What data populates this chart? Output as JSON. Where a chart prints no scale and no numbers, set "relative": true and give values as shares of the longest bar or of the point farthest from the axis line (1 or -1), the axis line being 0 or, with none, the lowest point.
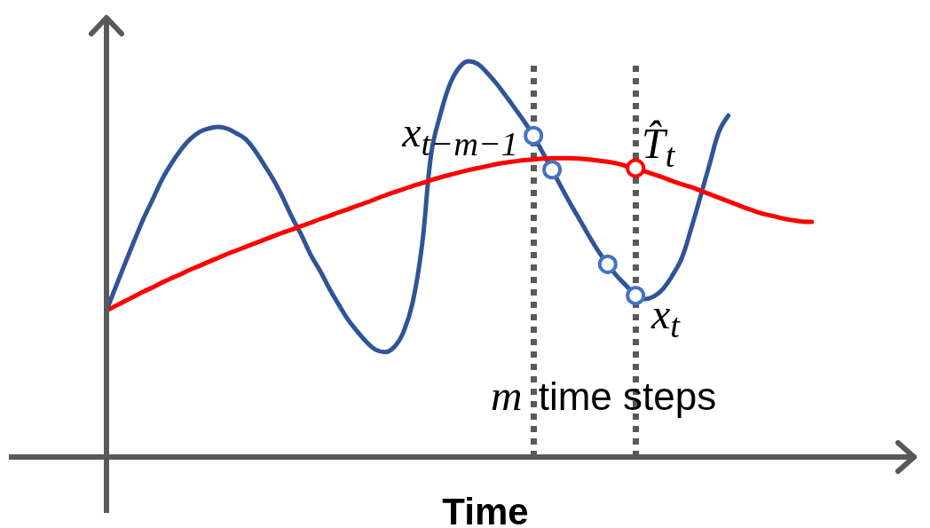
{
  "chart_data": {
    "type": "line",
    "relative": true,
    "xlabel": "Time",
    "categories": [
      null,
      null,
      null,
      null,
      null,
      null,
      null,
      null,
      null,
      null,
      null,
      null,
      null,
      null,
      null,
      null,
      null,
      null,
      null,
      null,
      null,
      null,
      null,
      null,
      null,
      null,
      null,
      null,
      null,
      null,
      null,
      null,
      null,
      null,
      null,
      null,
      null,
      null,
      null,
      null,
      null,
      null,
      null,
      null,
      null,
      null,
      null,
      null,
      null,
      null,
      null,
      null,
      null,
      null,
      null,
      null,
      null,
      null,
      null,
      null,
      null,
      null,
      null,
      null,
      null,
      null,
      null,
      null,
      null,
      null,
      null,
      null,
      null,
      null,
      null,
      null,
      null,
      null,
      null,
      null,
      null,
      null,
      null,
      null,
      null,
      null,
      null,
      null
    ],
    "series": [
      {
        "color": "#2f5597",
        "marker": "none",
        "values": [
          0.37,
          0.43,
          0.489,
          0.547,
          0.603,
          0.652,
          0.702,
          0.742,
          0.776,
          0.803,
          0.821,
          0.83,
          0.834,
          0.83,
          0.818,
          0.803,
          0.774,
          0.738,
          0.7,
          0.655,
          0.605,
          0.561,
          0.511,
          0.471,
          0.426,
          0.386,
          0.348,
          0.318,
          0.291,
          0.271,
          0.265,
          0.278,
          0.316,
          0.392,
          0.536,
          0.769,
          0.868,
          0.942,
          0.984,
          1,
          0.993,
          0.971,
          0.944,
          0.913,
          0.881,
          0.848,
          0.812,
          0.769,
          0.726,
          0.682,
          0.639,
          0.599,
          0.558,
          0.52,
          0.487,
          0.457,
          0.433,
          0.408,
          0.399,
          0.406,
          0.426,
          0.46,
          0.504,
          0.578,
          0.659,
          0.742,
          0.823,
          0.863,
          null,
          null,
          null,
          null,
          null,
          null,
          null,
          null,
          null,
          null,
          null,
          null,
          null,
          null,
          null,
          null,
          null,
          null,
          null,
          null
        ]
      },
      {
        "color": "#ff0000",
        "marker": "none",
        "values": [
          0.37,
          0.382,
          0.394,
          0.406,
          0.418,
          0.429,
          0.441,
          0.452,
          0.462,
          0.473,
          0.483,
          0.493,
          0.503,
          0.513,
          0.522,
          0.531,
          0.54,
          0.549,
          0.558,
          0.567,
          0.575,
          0.584,
          0.592,
          0.601,
          0.609,
          0.618,
          0.626,
          0.635,
          0.643,
          0.652,
          0.661,
          0.669,
          0.677,
          0.685,
          0.692,
          0.7,
          0.707,
          0.713,
          0.719,
          0.725,
          0.73,
          0.735,
          0.74,
          0.744,
          0.747,
          0.75,
          0.752,
          0.754,
          0.755,
          0.755,
          0.755,
          0.754,
          0.752,
          0.749,
          0.746,
          0.742,
          0.735,
          0.73,
          0.722,
          0.714,
          0.706,
          0.697,
          0.689,
          0.682,
          0.673,
          0.664,
          0.655,
          0.646,
          0.637,
          0.628,
          0.62,
          0.613,
          0.608,
          0.602,
          0.598,
          0.595,
          0.594,
          null,
          null,
          null,
          null,
          null,
          null,
          null,
          null,
          null,
          null,
          null
        ]
      },
      {
        "color": "#4472c4",
        "marker": "circle",
        "values": [
          null,
          null,
          null,
          null,
          null,
          null,
          null,
          null,
          null,
          null,
          null,
          null,
          null,
          null,
          null,
          null,
          null,
          null,
          null,
          null,
          null,
          null,
          null,
          null,
          null,
          null,
          null,
          null,
          null,
          null,
          null,
          null,
          null,
          null,
          null,
          null,
          null,
          null,
          null,
          null,
          null,
          null,
          null,
          null,
          null,
          null,
          0.812,
          null,
          null,
          null,
          null,
          null,
          null,
          null,
          null,
          null,
          null,
          null,
          null,
          null,
          null,
          null,
          null,
          null,
          null,
          null,
          null,
          null,
          null,
          null,
          null,
          null,
          null,
          null,
          null,
          null,
          null,
          null,
          null,
          null,
          null,
          null,
          null,
          null,
          null,
          null,
          null,
          null
        ]
      },
      {
        "color": "#4472c4",
        "marker": "circle",
        "values": [
          null,
          null,
          null,
          null,
          null,
          null,
          null,
          null,
          null,
          null,
          null,
          null,
          null,
          null,
          null,
          null,
          null,
          null,
          null,
          null,
          null,
          null,
          null,
          null,
          null,
          null,
          null,
          null,
          null,
          null,
          null,
          null,
          null,
          null,
          null,
          null,
          null,
          null,
          null,
          null,
          null,
          null,
          null,
          null,
          null,
          null,
          null,
          null,
          0.726,
          null,
          null,
          null,
          null,
          null,
          null,
          null,
          null,
          null,
          null,
          null,
          null,
          null,
          null,
          null,
          null,
          null,
          null,
          null,
          null,
          null,
          null,
          null,
          null,
          null,
          null,
          null,
          null,
          null,
          null,
          null,
          null,
          null,
          null,
          null,
          null,
          null,
          null,
          null
        ]
      },
      {
        "color": "#4472c4",
        "marker": "circle",
        "values": [
          null,
          null,
          null,
          null,
          null,
          null,
          null,
          null,
          null,
          null,
          null,
          null,
          null,
          null,
          null,
          null,
          null,
          null,
          null,
          null,
          null,
          null,
          null,
          null,
          null,
          null,
          null,
          null,
          null,
          null,
          null,
          null,
          null,
          null,
          null,
          null,
          null,
          null,
          null,
          null,
          null,
          null,
          null,
          null,
          null,
          null,
          null,
          null,
          null,
          null,
          null,
          null,
          null,
          null,
          0.487,
          null,
          null,
          null,
          null,
          null,
          null,
          null,
          null,
          null,
          null,
          null,
          null,
          null,
          null,
          null,
          null,
          null,
          null,
          null,
          null,
          null,
          null,
          null,
          null,
          null,
          null,
          null,
          null,
          null,
          null,
          null,
          null,
          null
        ]
      },
      {
        "color": "#4472c4",
        "marker": "circle",
        "values": [
          null,
          null,
          null,
          null,
          null,
          null,
          null,
          null,
          null,
          null,
          null,
          null,
          null,
          null,
          null,
          null,
          null,
          null,
          null,
          null,
          null,
          null,
          null,
          null,
          null,
          null,
          null,
          null,
          null,
          null,
          null,
          null,
          null,
          null,
          null,
          null,
          null,
          null,
          null,
          null,
          null,
          null,
          null,
          null,
          null,
          null,
          null,
          null,
          null,
          null,
          null,
          null,
          null,
          null,
          null,
          null,
          null,
          0.408,
          null,
          null,
          null,
          null,
          null,
          null,
          null,
          null,
          null,
          null,
          null,
          null,
          null,
          null,
          null,
          null,
          null,
          null,
          null,
          null,
          null,
          null,
          null,
          null,
          null,
          null,
          null,
          null,
          null,
          null
        ]
      },
      {
        "color": "#ff0000",
        "marker": "circle",
        "values": [
          null,
          null,
          null,
          null,
          null,
          null,
          null,
          null,
          null,
          null,
          null,
          null,
          null,
          null,
          null,
          null,
          null,
          null,
          null,
          null,
          null,
          null,
          null,
          null,
          null,
          null,
          null,
          null,
          null,
          null,
          null,
          null,
          null,
          null,
          null,
          null,
          null,
          null,
          null,
          null,
          null,
          null,
          null,
          null,
          null,
          null,
          null,
          null,
          null,
          null,
          null,
          null,
          null,
          null,
          null,
          null,
          null,
          0.73,
          null,
          null,
          null,
          null,
          null,
          null,
          null,
          null,
          null,
          null,
          null,
          null,
          null,
          null,
          null,
          null,
          null,
          null,
          null,
          null,
          null,
          null,
          null,
          null,
          null,
          null,
          null,
          null,
          null,
          null
        ]
      }
    ],
    "annotations": [
      "x$_{t−m−1}$",
      "T̂$_{t}$",
      "x$_{t}$",
      "m time steps"
    ]
  }
}
